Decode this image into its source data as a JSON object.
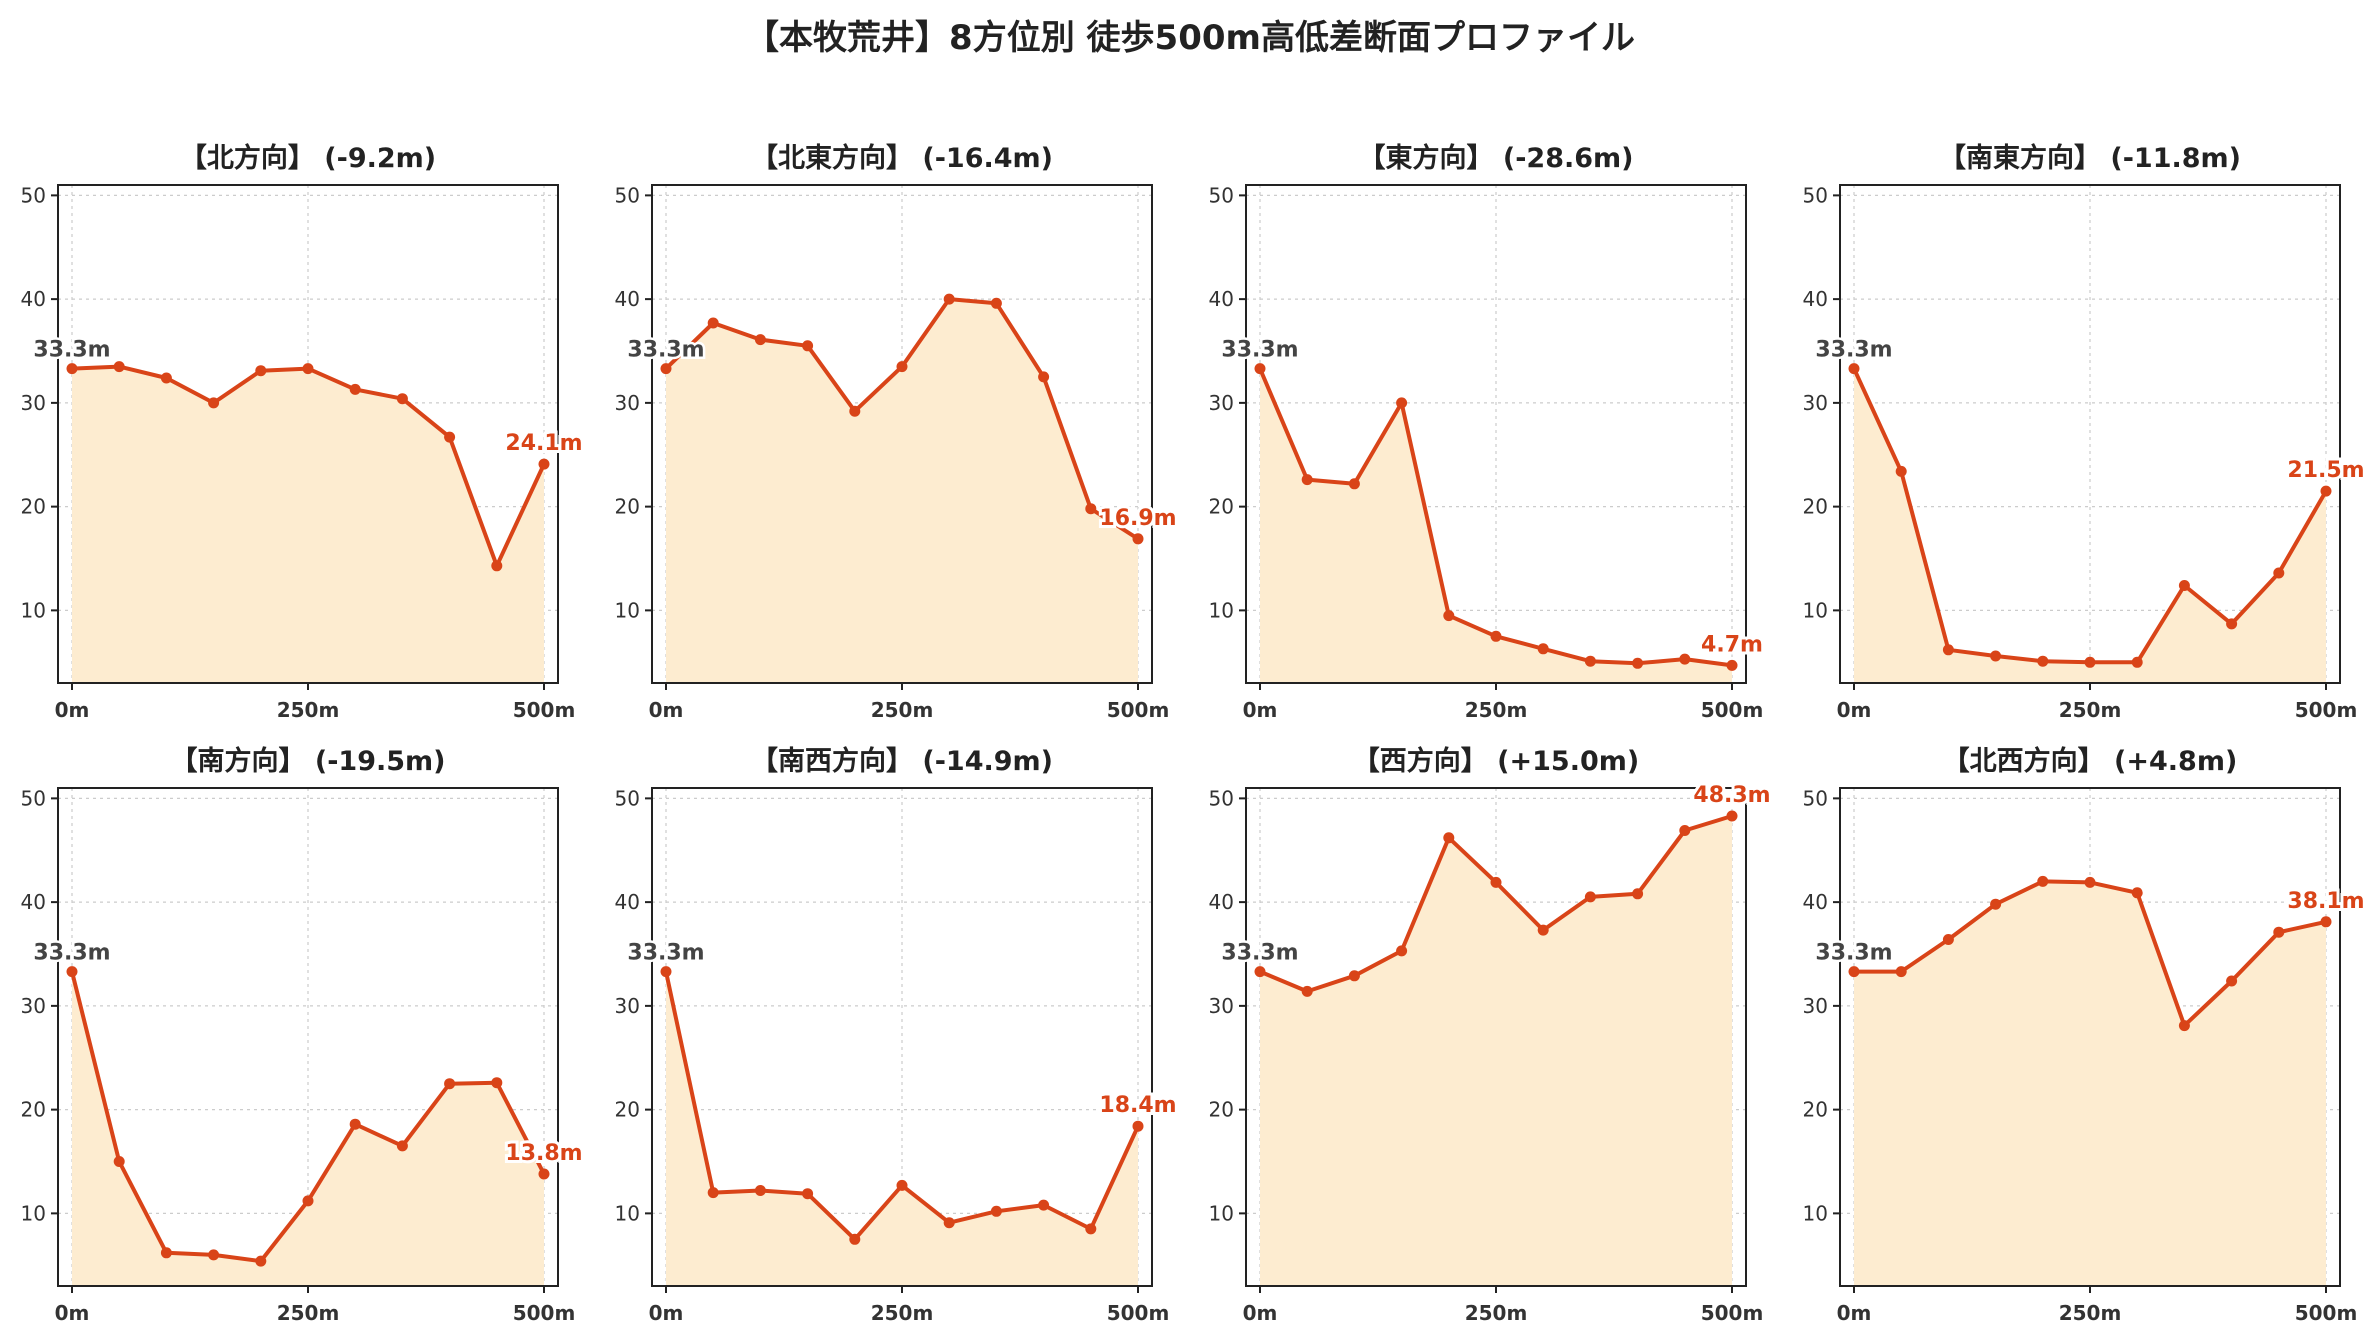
{
  "title": "【本牧荒井】8方位別 徒歩500m高低差断面プロファイル",
  "colors": {
    "line": "#d94418",
    "fill": "#fdecd0",
    "start_label": "#444444",
    "grid": "#cccccc",
    "axis": "#222222"
  },
  "chart_data": [
    {
      "type": "area",
      "title": "【北方向】 (-9.2m)",
      "x": [
        0,
        50,
        100,
        150,
        200,
        250,
        300,
        350,
        400,
        450,
        500
      ],
      "y": [
        33.3,
        33.5,
        32.4,
        30.0,
        33.1,
        33.3,
        31.3,
        30.4,
        26.7,
        14.3,
        24.1
      ],
      "xticks": [
        "0m",
        "250m",
        "500m"
      ],
      "ylim": [
        3,
        51
      ],
      "yticks": [
        10,
        20,
        30,
        40,
        50
      ],
      "start_label": "33.3m",
      "end_label": "24.1m",
      "grid": true
    },
    {
      "type": "area",
      "title": "【北東方向】 (-16.4m)",
      "x": [
        0,
        50,
        100,
        150,
        200,
        250,
        300,
        350,
        400,
        450,
        500
      ],
      "y": [
        33.3,
        37.7,
        36.1,
        35.5,
        29.2,
        33.5,
        40.0,
        39.6,
        32.5,
        19.8,
        16.9
      ],
      "xticks": [
        "0m",
        "250m",
        "500m"
      ],
      "ylim": [
        3,
        51
      ],
      "yticks": [
        10,
        20,
        30,
        40,
        50
      ],
      "start_label": "33.3m",
      "end_label": "16.9m",
      "grid": true
    },
    {
      "type": "area",
      "title": "【東方向】 (-28.6m)",
      "x": [
        0,
        50,
        100,
        150,
        200,
        250,
        300,
        350,
        400,
        450,
        500
      ],
      "y": [
        33.3,
        22.6,
        22.2,
        30.0,
        9.5,
        7.5,
        6.3,
        5.1,
        4.9,
        5.3,
        4.7
      ],
      "xticks": [
        "0m",
        "250m",
        "500m"
      ],
      "ylim": [
        3,
        51
      ],
      "yticks": [
        10,
        20,
        30,
        40,
        50
      ],
      "start_label": "33.3m",
      "end_label": "4.7m",
      "grid": true
    },
    {
      "type": "area",
      "title": "【南東方向】 (-11.8m)",
      "x": [
        0,
        50,
        100,
        150,
        200,
        250,
        300,
        350,
        400,
        450,
        500
      ],
      "y": [
        33.3,
        23.4,
        6.2,
        5.6,
        5.1,
        5.0,
        5.0,
        12.4,
        8.7,
        13.6,
        21.5
      ],
      "xticks": [
        "0m",
        "250m",
        "500m"
      ],
      "ylim": [
        3,
        51
      ],
      "yticks": [
        10,
        20,
        30,
        40,
        50
      ],
      "start_label": "33.3m",
      "end_label": "21.5m",
      "grid": true
    },
    {
      "type": "area",
      "title": "【南方向】 (-19.5m)",
      "x": [
        0,
        50,
        100,
        150,
        200,
        250,
        300,
        350,
        400,
        450,
        500
      ],
      "y": [
        33.3,
        15.0,
        6.2,
        6.0,
        5.4,
        11.2,
        18.6,
        16.5,
        22.5,
        22.6,
        13.8
      ],
      "xticks": [
        "0m",
        "250m",
        "500m"
      ],
      "ylim": [
        3,
        51
      ],
      "yticks": [
        10,
        20,
        30,
        40,
        50
      ],
      "start_label": "33.3m",
      "end_label": "13.8m",
      "grid": true
    },
    {
      "type": "area",
      "title": "【南西方向】 (-14.9m)",
      "x": [
        0,
        50,
        100,
        150,
        200,
        250,
        300,
        350,
        400,
        450,
        500
      ],
      "y": [
        33.3,
        12.0,
        12.2,
        11.9,
        7.5,
        12.7,
        9.1,
        10.2,
        10.8,
        8.5,
        18.4
      ],
      "xticks": [
        "0m",
        "250m",
        "500m"
      ],
      "ylim": [
        3,
        51
      ],
      "yticks": [
        10,
        20,
        30,
        40,
        50
      ],
      "start_label": "33.3m",
      "end_label": "18.4m",
      "grid": true
    },
    {
      "type": "area",
      "title": "【西方向】 (+15.0m)",
      "x": [
        0,
        50,
        100,
        150,
        200,
        250,
        300,
        350,
        400,
        450,
        500
      ],
      "y": [
        33.3,
        31.4,
        32.9,
        35.3,
        46.2,
        41.9,
        37.3,
        40.5,
        40.8,
        46.9,
        48.3
      ],
      "xticks": [
        "0m",
        "250m",
        "500m"
      ],
      "ylim": [
        3,
        51
      ],
      "yticks": [
        10,
        20,
        30,
        40,
        50
      ],
      "start_label": "33.3m",
      "end_label": "48.3m",
      "grid": true
    },
    {
      "type": "area",
      "title": "【北西方向】 (+4.8m)",
      "x": [
        0,
        50,
        100,
        150,
        200,
        250,
        300,
        350,
        400,
        450,
        500
      ],
      "y": [
        33.3,
        33.3,
        36.4,
        39.8,
        42.0,
        41.9,
        40.9,
        28.1,
        32.4,
        37.1,
        38.1
      ],
      "xticks": [
        "0m",
        "250m",
        "500m"
      ],
      "ylim": [
        3,
        51
      ],
      "yticks": [
        10,
        20,
        30,
        40,
        50
      ],
      "start_label": "33.3m",
      "end_label": "38.1m",
      "grid": true
    }
  ]
}
